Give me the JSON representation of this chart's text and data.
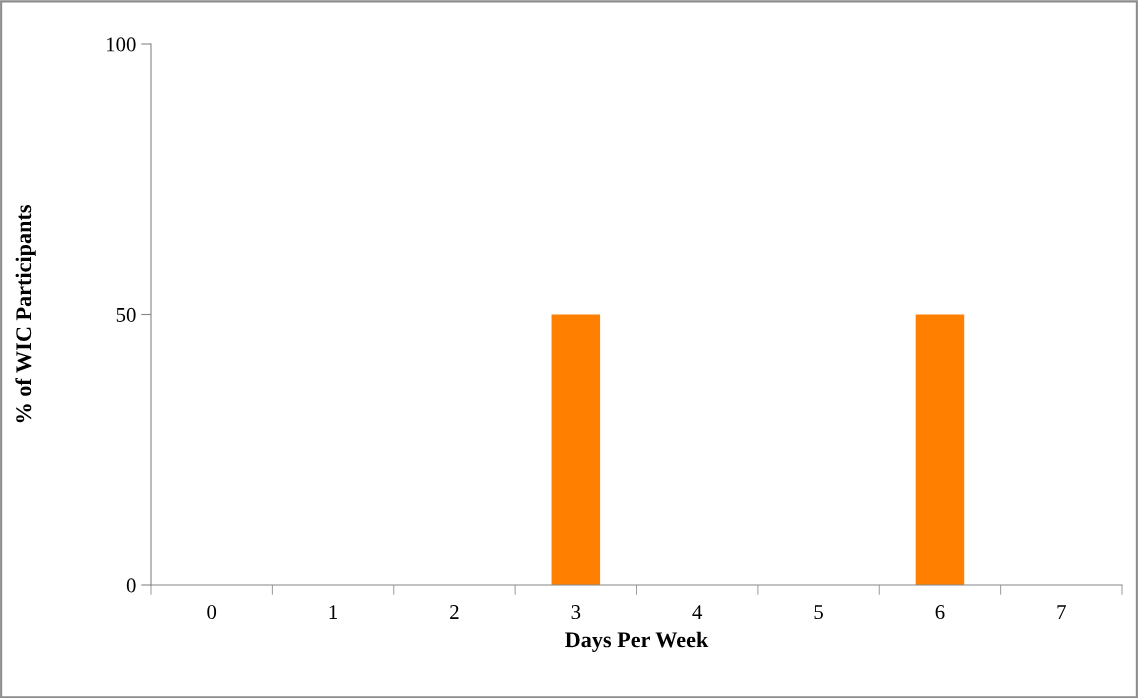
{
  "chart_data": {
    "type": "bar",
    "xlabel": "Days Per Week",
    "ylabel": "% of WIC Participants",
    "categories": [
      "0",
      "1",
      "2",
      "3",
      "4",
      "5",
      "6",
      "7"
    ],
    "values": [
      0,
      0,
      0,
      50,
      0,
      0,
      50,
      0
    ],
    "color": "#ff8000",
    "ylim": [
      0,
      100
    ],
    "yticks": [
      0,
      50,
      100
    ],
    "grid": false
  }
}
